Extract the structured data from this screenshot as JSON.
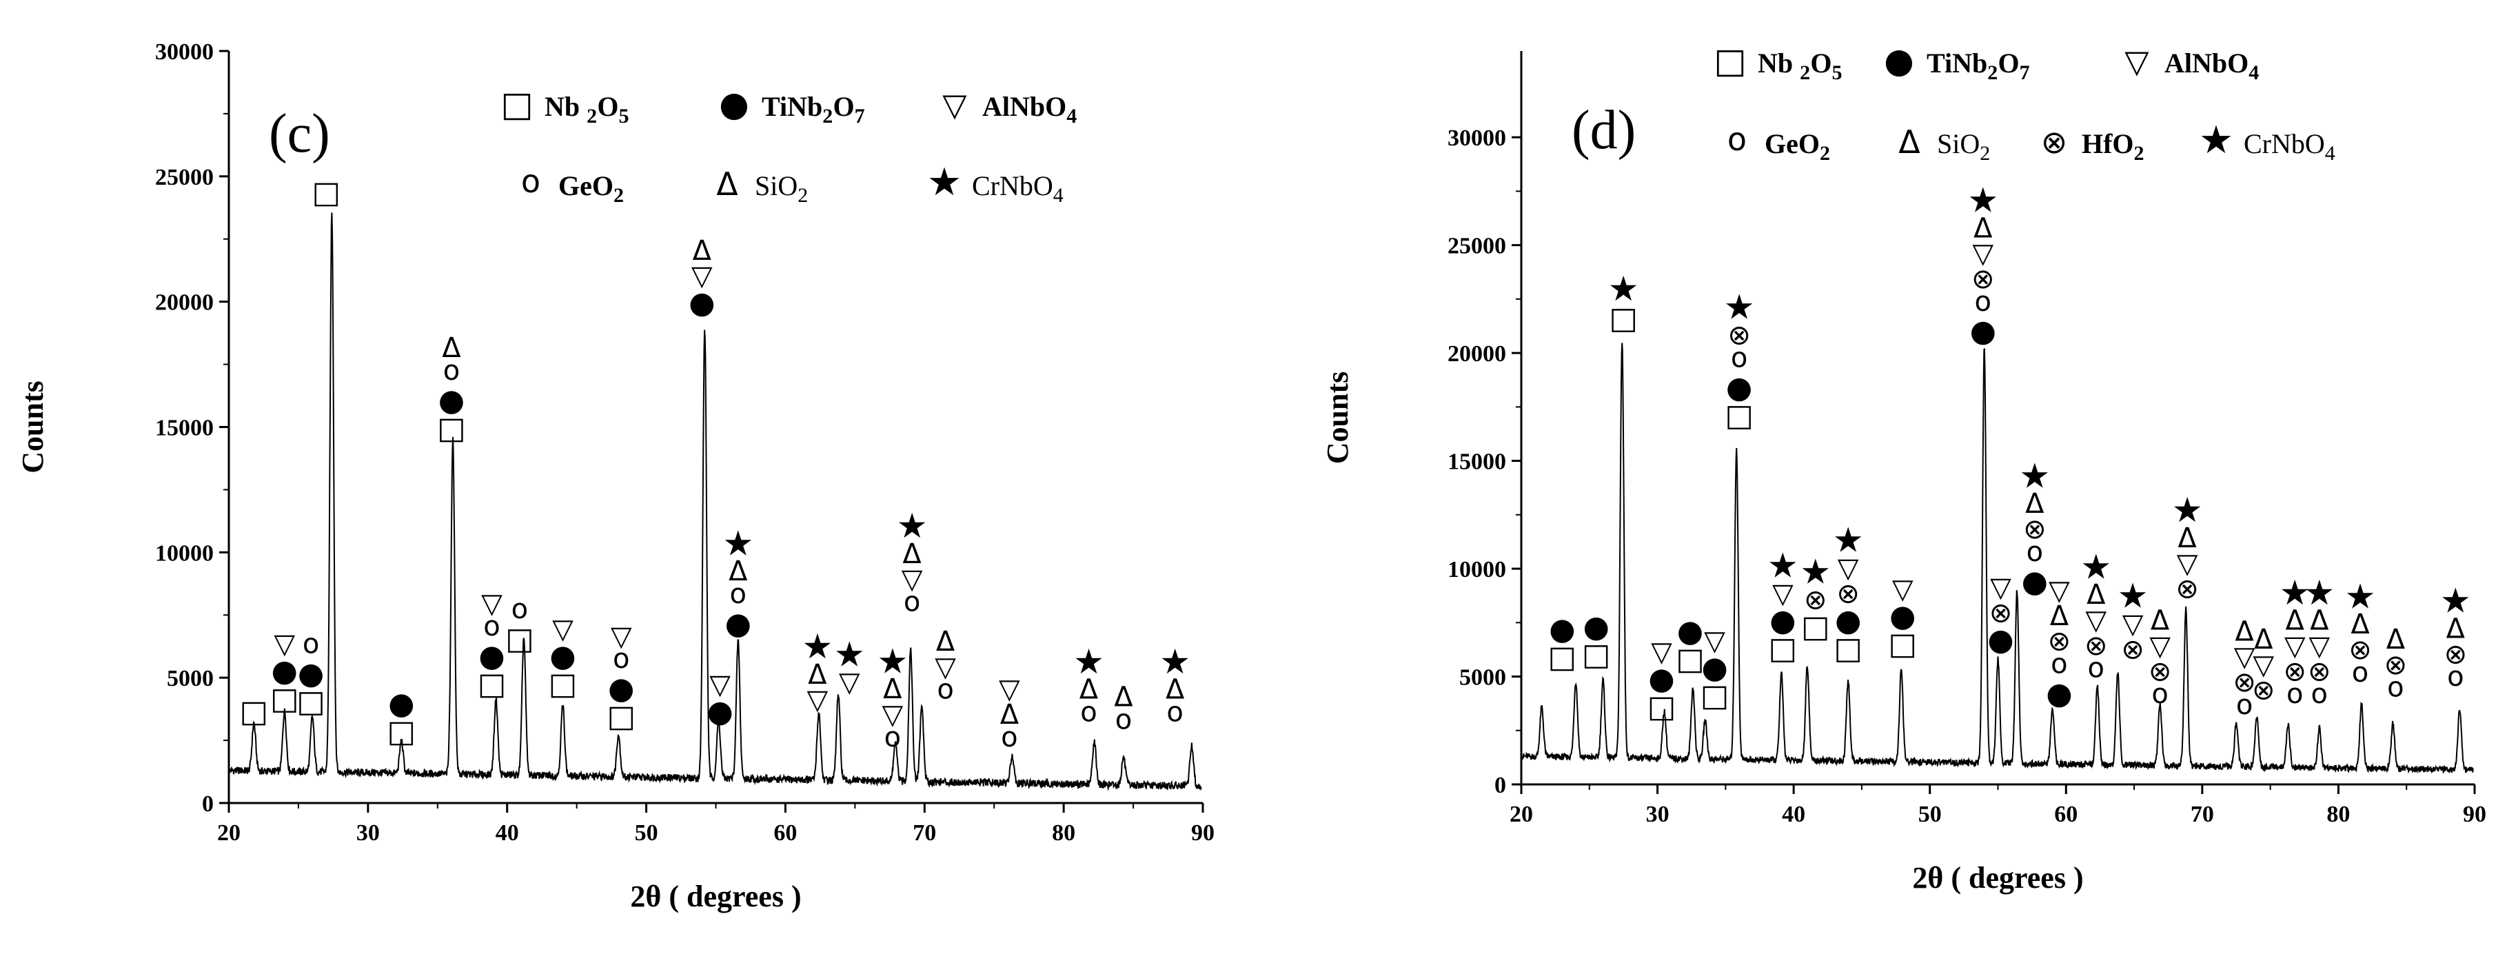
{
  "chart_data": [
    {
      "type": "line",
      "panel_label": "(c)",
      "xlabel": "2θ ( degrees )",
      "ylabel": "Counts",
      "xlim": [
        20,
        90
      ],
      "ylim": [
        0,
        30000
      ],
      "xticks": [
        20,
        30,
        40,
        50,
        60,
        70,
        80,
        90
      ],
      "yticks": [
        0,
        5000,
        10000,
        15000,
        20000,
        25000,
        30000
      ],
      "legend": [
        {
          "symbol": "Nb2O5",
          "glyph": "□",
          "parts": [
            {
              "t": "Nb "
            },
            {
              "t": "2",
              "sub": true
            },
            {
              "t": "O"
            },
            {
              "t": "5",
              "sub": true
            }
          ],
          "bold": true
        },
        {
          "symbol": "TiNb2O7",
          "glyph": "●",
          "parts": [
            {
              "t": "TiNb"
            },
            {
              "t": "2",
              "sub": true
            },
            {
              "t": "O"
            },
            {
              "t": "7",
              "sub": true
            }
          ],
          "bold": true
        },
        {
          "symbol": "AlNbO4",
          "glyph": "▽",
          "parts": [
            {
              "t": "AlNbO"
            },
            {
              "t": "4",
              "sub": true
            }
          ],
          "bold": true
        },
        {
          "symbol": "GeO2",
          "glyph": "o",
          "parts": [
            {
              "t": "GeO"
            },
            {
              "t": "2",
              "sub": true
            }
          ],
          "bold": true
        },
        {
          "symbol": "SiO2",
          "glyph": "Δ",
          "parts": [
            {
              "t": "SiO"
            },
            {
              "t": "2",
              "sub": true
            }
          ],
          "bold": false
        },
        {
          "symbol": "CrNbO4",
          "glyph": "★",
          "parts": [
            {
              "t": "CrNbO"
            },
            {
              "t": "4",
              "sub": true
            }
          ],
          "bold": false
        }
      ],
      "peaks": [
        {
          "x": 21.8,
          "y": 1900
        },
        {
          "x": 24.0,
          "y": 2400
        },
        {
          "x": 26.0,
          "y": 2200
        },
        {
          "x": 27.4,
          "y": 22300
        },
        {
          "x": 32.4,
          "y": 1300
        },
        {
          "x": 36.1,
          "y": 13300
        },
        {
          "x": 39.2,
          "y": 3000
        },
        {
          "x": 41.2,
          "y": 5500
        },
        {
          "x": 44.0,
          "y": 2800
        },
        {
          "x": 48.0,
          "y": 1700
        },
        {
          "x": 54.2,
          "y": 17900
        },
        {
          "x": 55.2,
          "y": 2300
        },
        {
          "x": 56.6,
          "y": 5500
        },
        {
          "x": 62.4,
          "y": 2700
        },
        {
          "x": 63.8,
          "y": 3400
        },
        {
          "x": 67.9,
          "y": 1500
        },
        {
          "x": 69.0,
          "y": 5300
        },
        {
          "x": 69.8,
          "y": 3000
        },
        {
          "x": 76.3,
          "y": 1100
        },
        {
          "x": 82.2,
          "y": 1700
        },
        {
          "x": 84.3,
          "y": 1100
        },
        {
          "x": 89.2,
          "y": 1600
        }
      ],
      "annotations": [
        {
          "x": 21.8,
          "y": 2700,
          "symbols": [
            "Nb2O5"
          ]
        },
        {
          "x": 24.0,
          "y": 3200,
          "symbols": [
            "Nb2O5",
            "TiNb2O7",
            "AlNbO4"
          ]
        },
        {
          "x": 25.9,
          "y": 3100,
          "symbols": [
            "Nb2O5",
            "TiNb2O7",
            "GeO2"
          ]
        },
        {
          "x": 27.0,
          "y": 23400,
          "symbols": [
            "Nb2O5"
          ]
        },
        {
          "x": 32.4,
          "y": 1900,
          "symbols": [
            "Nb2O5",
            "TiNb2O7"
          ]
        },
        {
          "x": 36.0,
          "y": 14000,
          "symbols": [
            "Nb2O5",
            "TiNb2O7",
            "GeO2",
            "SiO2"
          ]
        },
        {
          "x": 38.9,
          "y": 3800,
          "symbols": [
            "Nb2O5",
            "TiNb2O7",
            "GeO2",
            "AlNbO4"
          ]
        },
        {
          "x": 40.9,
          "y": 5600,
          "symbols": [
            "Nb2O5",
            "GeO2"
          ]
        },
        {
          "x": 44.0,
          "y": 3800,
          "symbols": [
            "Nb2O5",
            "TiNb2O7",
            "AlNbO4"
          ]
        },
        {
          "x": 48.2,
          "y": 2500,
          "symbols": [
            "Nb2O5",
            "TiNb2O7",
            "GeO2",
            "AlNbO4"
          ]
        },
        {
          "x": 54.0,
          "y": 19000,
          "symbols": [
            "TiNb2O7",
            "AlNbO4",
            "SiO2"
          ]
        },
        {
          "x": 55.3,
          "y": 2700,
          "symbols": [
            "TiNb2O7",
            "AlNbO4"
          ]
        },
        {
          "x": 56.6,
          "y": 6200,
          "symbols": [
            "TiNb2O7",
            "GeO2",
            "SiO2",
            "CrNbO4"
          ]
        },
        {
          "x": 62.3,
          "y": 3200,
          "symbols": [
            "AlNbO4",
            "SiO2",
            "CrNbO4"
          ]
        },
        {
          "x": 64.6,
          "y": 3900,
          "symbols": [
            "AlNbO4",
            "CrNbO4"
          ]
        },
        {
          "x": 67.7,
          "y": 1600,
          "symbols": [
            "GeO2",
            "AlNbO4",
            "SiO2",
            "CrNbO4"
          ]
        },
        {
          "x": 69.1,
          "y": 7000,
          "symbols": [
            "GeO2",
            "AlNbO4",
            "SiO2",
            "CrNbO4"
          ]
        },
        {
          "x": 71.5,
          "y": 3500,
          "symbols": [
            "GeO2",
            "AlNbO4",
            "SiO2"
          ]
        },
        {
          "x": 76.1,
          "y": 1600,
          "symbols": [
            "GeO2",
            "SiO2",
            "AlNbO4"
          ]
        },
        {
          "x": 81.8,
          "y": 2600,
          "symbols": [
            "GeO2",
            "SiO2",
            "CrNbO4"
          ]
        },
        {
          "x": 84.3,
          "y": 2300,
          "symbols": [
            "GeO2",
            "SiO2"
          ]
        },
        {
          "x": 88.0,
          "y": 2600,
          "symbols": [
            "GeO2",
            "SiO2",
            "CrNbO4"
          ]
        }
      ]
    },
    {
      "type": "line",
      "panel_label": "(d)",
      "xlabel": "2θ ( degrees )",
      "ylabel": "Counts",
      "xlim": [
        20,
        90
      ],
      "ylim": [
        0,
        34000
      ],
      "xticks": [
        20,
        30,
        40,
        50,
        60,
        70,
        80,
        90
      ],
      "yticks": [
        0,
        5000,
        10000,
        15000,
        20000,
        25000,
        30000
      ],
      "legend": [
        {
          "symbol": "Nb2O5",
          "glyph": "□",
          "parts": [
            {
              "t": "Nb "
            },
            {
              "t": "2",
              "sub": true
            },
            {
              "t": "O"
            },
            {
              "t": "5",
              "sub": true
            }
          ],
          "bold": true
        },
        {
          "symbol": "TiNb2O7",
          "glyph": "●",
          "parts": [
            {
              "t": "TiNb"
            },
            {
              "t": "2",
              "sub": true
            },
            {
              "t": "O"
            },
            {
              "t": "7",
              "sub": true
            }
          ],
          "bold": true
        },
        {
          "symbol": "AlNbO4",
          "glyph": "▽",
          "parts": [
            {
              "t": "AlNbO"
            },
            {
              "t": "4",
              "sub": true
            }
          ],
          "bold": true
        },
        {
          "symbol": "GeO2",
          "glyph": "o",
          "parts": [
            {
              "t": "GeO"
            },
            {
              "t": "2",
              "sub": true
            }
          ],
          "bold": true
        },
        {
          "symbol": "SiO2",
          "glyph": "Δ",
          "parts": [
            {
              "t": "SiO"
            },
            {
              "t": "2",
              "sub": true
            }
          ],
          "bold": false
        },
        {
          "symbol": "HfO2",
          "glyph": "⊗",
          "parts": [
            {
              "t": "HfO"
            },
            {
              "t": "2",
              "sub": true
            }
          ],
          "bold": true
        },
        {
          "symbol": "CrNbO4",
          "glyph": "★",
          "parts": [
            {
              "t": "CrNbO"
            },
            {
              "t": "4",
              "sub": true
            }
          ],
          "bold": false
        }
      ],
      "peaks": [
        {
          "x": 21.5,
          "y": 2300
        },
        {
          "x": 24.0,
          "y": 3500
        },
        {
          "x": 26.0,
          "y": 3600
        },
        {
          "x": 27.4,
          "y": 19300
        },
        {
          "x": 30.5,
          "y": 2200
        },
        {
          "x": 32.6,
          "y": 3300
        },
        {
          "x": 33.5,
          "y": 1800
        },
        {
          "x": 35.8,
          "y": 14400
        },
        {
          "x": 39.1,
          "y": 4000
        },
        {
          "x": 41.0,
          "y": 4400
        },
        {
          "x": 44.0,
          "y": 3700
        },
        {
          "x": 47.9,
          "y": 4200
        },
        {
          "x": 54.0,
          "y": 19300
        },
        {
          "x": 55.0,
          "y": 4800
        },
        {
          "x": 56.4,
          "y": 8000
        },
        {
          "x": 59.0,
          "y": 2500
        },
        {
          "x": 62.3,
          "y": 3600
        },
        {
          "x": 63.8,
          "y": 4300
        },
        {
          "x": 66.9,
          "y": 2800
        },
        {
          "x": 68.8,
          "y": 7300
        },
        {
          "x": 72.5,
          "y": 2000
        },
        {
          "x": 74.0,
          "y": 2300
        },
        {
          "x": 76.3,
          "y": 2000
        },
        {
          "x": 78.6,
          "y": 1800
        },
        {
          "x": 81.7,
          "y": 3000
        },
        {
          "x": 84.0,
          "y": 2100
        },
        {
          "x": 88.9,
          "y": 2800
        }
      ],
      "annotations": [
        {
          "x": 23.0,
          "y": 4800,
          "symbols": [
            "Nb2O5",
            "TiNb2O7"
          ]
        },
        {
          "x": 25.5,
          "y": 4900,
          "symbols": [
            "Nb2O5",
            "TiNb2O7"
          ]
        },
        {
          "x": 27.5,
          "y": 20500,
          "symbols": [
            "Nb2O5",
            "CrNbO4"
          ]
        },
        {
          "x": 30.3,
          "y": 2500,
          "symbols": [
            "Nb2O5",
            "TiNb2O7",
            "AlNbO4"
          ]
        },
        {
          "x": 32.4,
          "y": 4700,
          "symbols": [
            "Nb2O5",
            "TiNb2O7"
          ]
        },
        {
          "x": 34.2,
          "y": 3000,
          "symbols": [
            "Nb2O5",
            "TiNb2O7",
            "AlNbO4"
          ]
        },
        {
          "x": 36.0,
          "y": 16000,
          "symbols": [
            "Nb2O5",
            "TiNb2O7",
            "GeO2",
            "HfO2",
            "CrNbO4"
          ]
        },
        {
          "x": 39.2,
          "y": 5200,
          "symbols": [
            "Nb2O5",
            "TiNb2O7",
            "AlNbO4",
            "CrNbO4"
          ]
        },
        {
          "x": 41.6,
          "y": 6200,
          "symbols": [
            "Nb2O5",
            "HfO2",
            "CrNbO4"
          ]
        },
        {
          "x": 44.0,
          "y": 5200,
          "symbols": [
            "Nb2O5",
            "TiNb2O7",
            "HfO2",
            "AlNbO4",
            "CrNbO4"
          ]
        },
        {
          "x": 48.0,
          "y": 5400,
          "symbols": [
            "Nb2O5",
            "TiNb2O7",
            "AlNbO4"
          ]
        },
        {
          "x": 53.9,
          "y": 19900,
          "symbols": [
            "TiNb2O7",
            "GeO2",
            "HfO2",
            "AlNbO4",
            "SiO2",
            "CrNbO4"
          ]
        },
        {
          "x": 55.2,
          "y": 5600,
          "symbols": [
            "TiNb2O7",
            "HfO2",
            "AlNbO4"
          ]
        },
        {
          "x": 57.7,
          "y": 8300,
          "symbols": [
            "TiNb2O7",
            "GeO2",
            "HfO2",
            "SiO2",
            "CrNbO4"
          ]
        },
        {
          "x": 59.5,
          "y": 3100,
          "symbols": [
            "TiNb2O7",
            "GeO2",
            "HfO2",
            "SiO2",
            "AlNbO4"
          ]
        },
        {
          "x": 62.2,
          "y": 4200,
          "symbols": [
            "GeO2",
            "HfO2",
            "AlNbO4",
            "SiO2",
            "CrNbO4"
          ]
        },
        {
          "x": 64.9,
          "y": 5200,
          "symbols": [
            "HfO2",
            "AlNbO4",
            "CrNbO4"
          ]
        },
        {
          "x": 66.9,
          "y": 3000,
          "symbols": [
            "GeO2",
            "HfO2",
            "AlNbO4",
            "SiO2"
          ]
        },
        {
          "x": 68.9,
          "y": 8000,
          "symbols": [
            "HfO2",
            "AlNbO4",
            "SiO2",
            "CrNbO4"
          ]
        },
        {
          "x": 73.1,
          "y": 2500,
          "symbols": [
            "GeO2",
            "HfO2",
            "AlNbO4",
            "SiO2"
          ]
        },
        {
          "x": 74.5,
          "y": 3300,
          "symbols": [
            "HfO2",
            "AlNbO4",
            "SiO2"
          ]
        },
        {
          "x": 76.8,
          "y": 3000,
          "symbols": [
            "GeO2",
            "HfO2",
            "AlNbO4",
            "SiO2",
            "CrNbO4"
          ]
        },
        {
          "x": 78.6,
          "y": 3000,
          "symbols": [
            "GeO2",
            "HfO2",
            "AlNbO4",
            "SiO2",
            "CrNbO4"
          ]
        },
        {
          "x": 81.6,
          "y": 4000,
          "symbols": [
            "GeO2",
            "HfO2",
            "SiO2",
            "CrNbO4"
          ]
        },
        {
          "x": 84.2,
          "y": 3300,
          "symbols": [
            "GeO2",
            "HfO2",
            "SiO2"
          ]
        },
        {
          "x": 88.6,
          "y": 3800,
          "symbols": [
            "GeO2",
            "HfO2",
            "SiO2",
            "CrNbO4"
          ]
        }
      ]
    }
  ]
}
